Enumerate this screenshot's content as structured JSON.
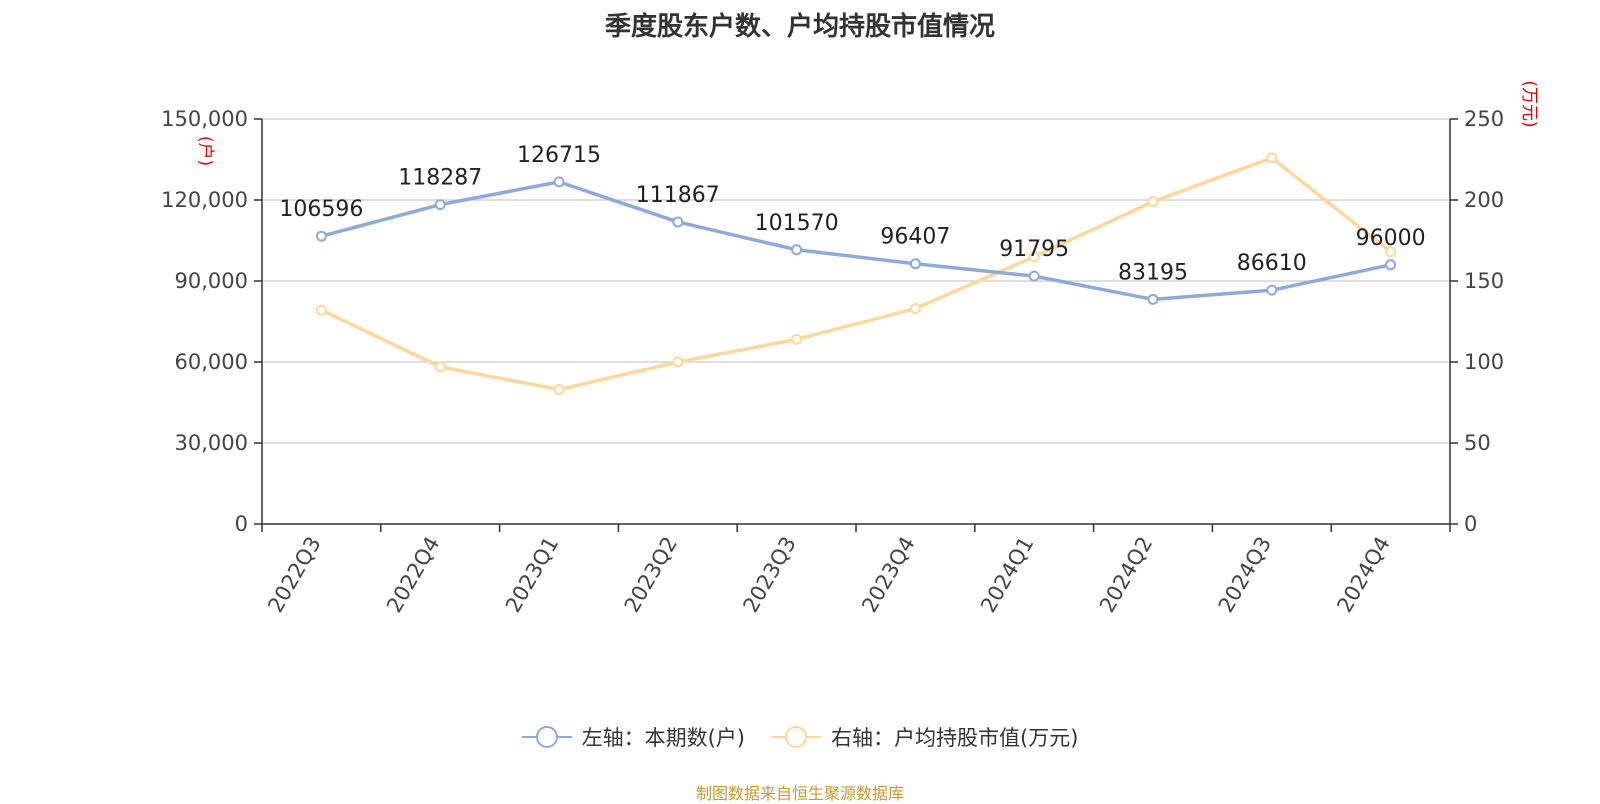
{
  "chart_data": {
    "type": "line",
    "title": "季度股东户数、户均持股市值情况",
    "categories": [
      "2022Q3",
      "2022Q4",
      "2023Q1",
      "2023Q2",
      "2023Q3",
      "2023Q4",
      "2024Q1",
      "2024Q2",
      "2024Q3",
      "2024Q4"
    ],
    "y_left": {
      "unit": "(户)",
      "ylim": [
        0,
        150000
      ],
      "ticks": [
        "0",
        "30,000",
        "60,000",
        "90,000",
        "120,000",
        "150,000"
      ],
      "tick_values": [
        0,
        30000,
        60000,
        90000,
        120000,
        150000
      ]
    },
    "y_right": {
      "unit": "(万元)",
      "ylim": [
        0,
        250
      ],
      "ticks": [
        "0",
        "50",
        "100",
        "150",
        "200",
        "250"
      ],
      "tick_values": [
        0,
        50,
        100,
        150,
        200,
        250
      ]
    },
    "series": [
      {
        "name": "左轴：本期数(户)",
        "axis": "left",
        "color": "#8eaadb",
        "values": [
          106596,
          118287,
          126715,
          111867,
          101570,
          96407,
          91795,
          83195,
          86610,
          96000
        ],
        "labels": [
          "106596",
          "118287",
          "126715",
          "111867",
          "101570",
          "96407",
          "91795",
          "83195",
          "86610",
          "96000"
        ]
      },
      {
        "name": "右轴：户均持股市值(万元)",
        "axis": "right",
        "color": "#fdd89a",
        "values": [
          132,
          97,
          83,
          100,
          114,
          133,
          165,
          199,
          226,
          168
        ]
      }
    ],
    "grid": true,
    "legend_position": "bottom"
  },
  "footer": {
    "source": "制图数据来自恒生聚源数据库"
  }
}
